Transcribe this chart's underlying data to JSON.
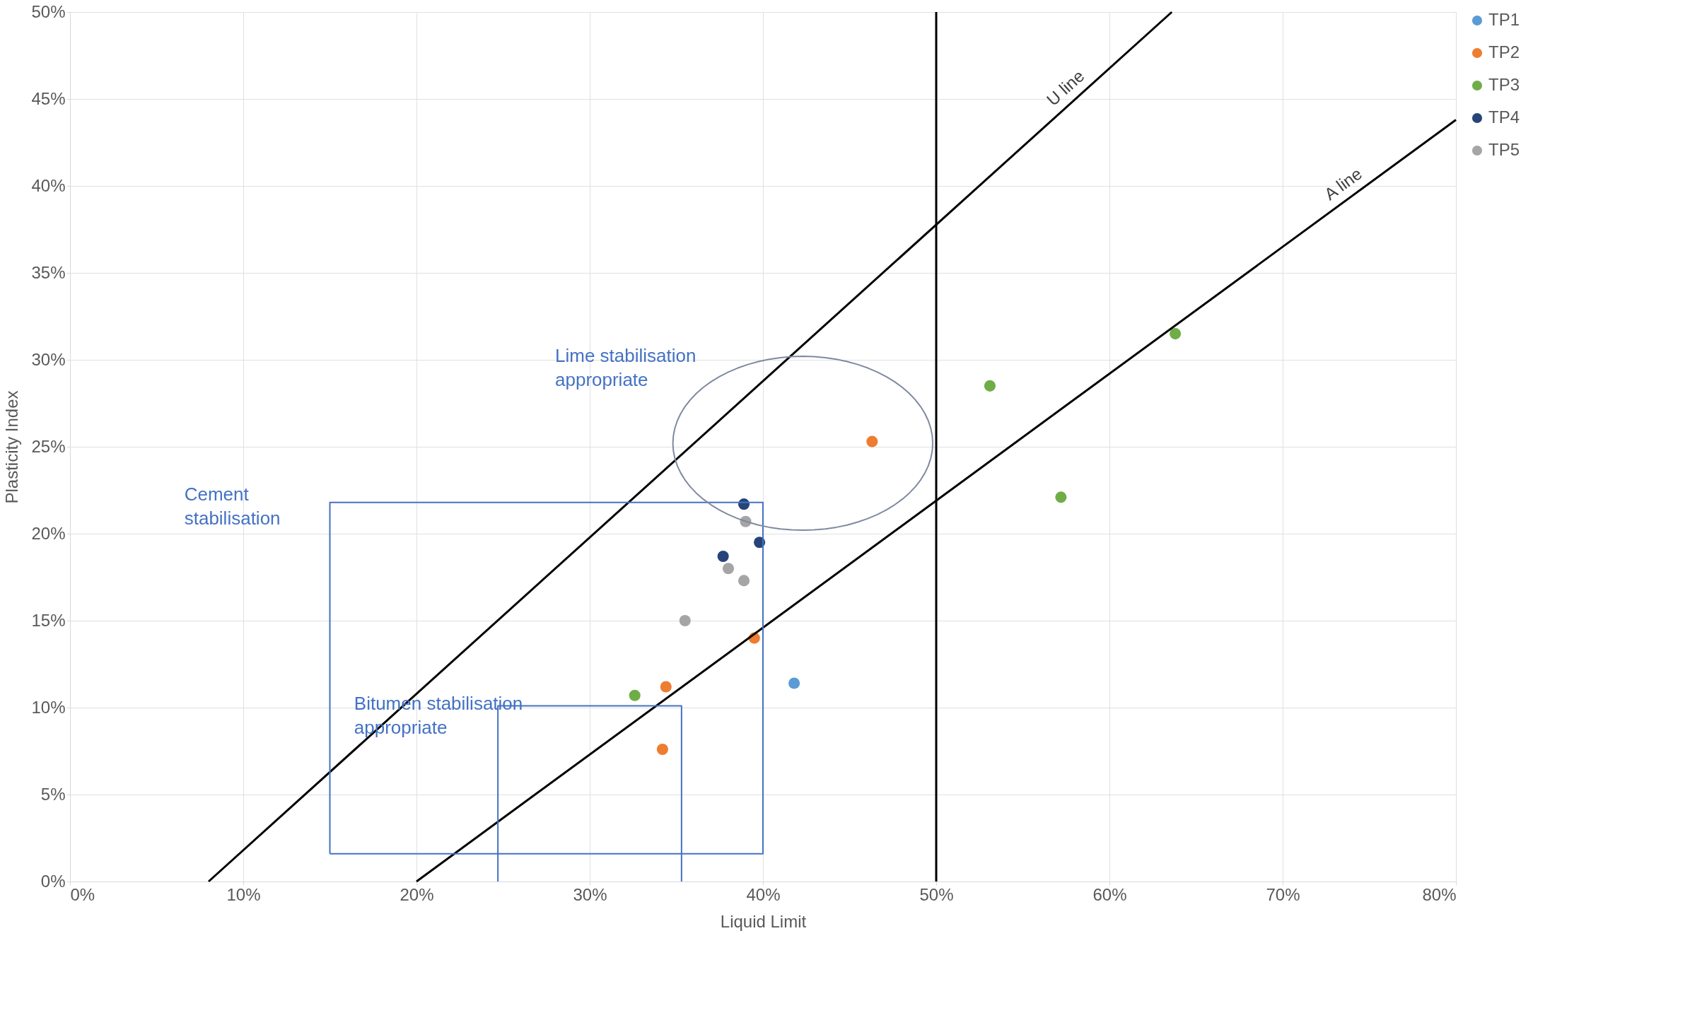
{
  "chart_data": {
    "type": "scatter",
    "xlabel": "Liquid Limit",
    "ylabel": "Plasticity Index",
    "xlim": [
      0,
      80
    ],
    "ylim": [
      0,
      50
    ],
    "xticks": [
      {
        "value": 0,
        "label": "0%"
      },
      {
        "value": 10,
        "label": "10%"
      },
      {
        "value": 20,
        "label": "20%"
      },
      {
        "value": 30,
        "label": "30%"
      },
      {
        "value": 40,
        "label": "40%"
      },
      {
        "value": 50,
        "label": "50%"
      },
      {
        "value": 60,
        "label": "60%"
      },
      {
        "value": 70,
        "label": "70%"
      },
      {
        "value": 80,
        "label": "80%"
      }
    ],
    "yticks": [
      {
        "value": 0,
        "label": "0%"
      },
      {
        "value": 5,
        "label": "5%"
      },
      {
        "value": 10,
        "label": "10%"
      },
      {
        "value": 15,
        "label": "15%"
      },
      {
        "value": 20,
        "label": "20%"
      },
      {
        "value": 25,
        "label": "25%"
      },
      {
        "value": 30,
        "label": "30%"
      },
      {
        "value": 35,
        "label": "35%"
      },
      {
        "value": 40,
        "label": "40%"
      },
      {
        "value": 45,
        "label": "45%"
      },
      {
        "value": 50,
        "label": "50%"
      }
    ],
    "grid": true,
    "legend": "right",
    "marker": "circle",
    "series": [
      {
        "name": "TP1",
        "color": "#5b9bd5",
        "x": [
          41.8
        ],
        "values": [
          11.4
        ]
      },
      {
        "name": "TP2",
        "color": "#ed7d31",
        "x": [
          46.3,
          39.5,
          34.4,
          34.2
        ],
        "values": [
          25.3,
          14.0,
          11.2,
          7.6
        ]
      },
      {
        "name": "TP3",
        "color": "#70ad47",
        "x": [
          63.8,
          53.1,
          57.2,
          32.6
        ],
        "values": [
          31.5,
          28.5,
          22.1,
          10.7
        ]
      },
      {
        "name": "TP4",
        "color": "#264478",
        "x": [
          38.9,
          37.7,
          39.8
        ],
        "values": [
          21.7,
          18.7,
          19.5
        ]
      },
      {
        "name": "TP5",
        "color": "#a5a5a5",
        "x": [
          39.0,
          38.0,
          38.9,
          35.5
        ],
        "values": [
          20.7,
          18.0,
          17.3,
          15.0
        ]
      },
      {
        "type": "line",
        "name": "U line",
        "marker": "none",
        "color": "#000000",
        "x": [
          8,
          63.6
        ],
        "values": [
          0,
          50
        ]
      },
      {
        "type": "line",
        "name": "A line",
        "marker": "none",
        "color": "#000000",
        "x": [
          20,
          80
        ],
        "values": [
          0,
          43.8
        ]
      }
    ],
    "ref_lines": [
      {
        "axis": "x",
        "value": 50,
        "color": "#000000"
      }
    ],
    "annotations": [
      "Lime stabilisation\nappropriate",
      "Cement\nstabilisation",
      "Bitumen stabilisation\nappropriate"
    ]
  }
}
